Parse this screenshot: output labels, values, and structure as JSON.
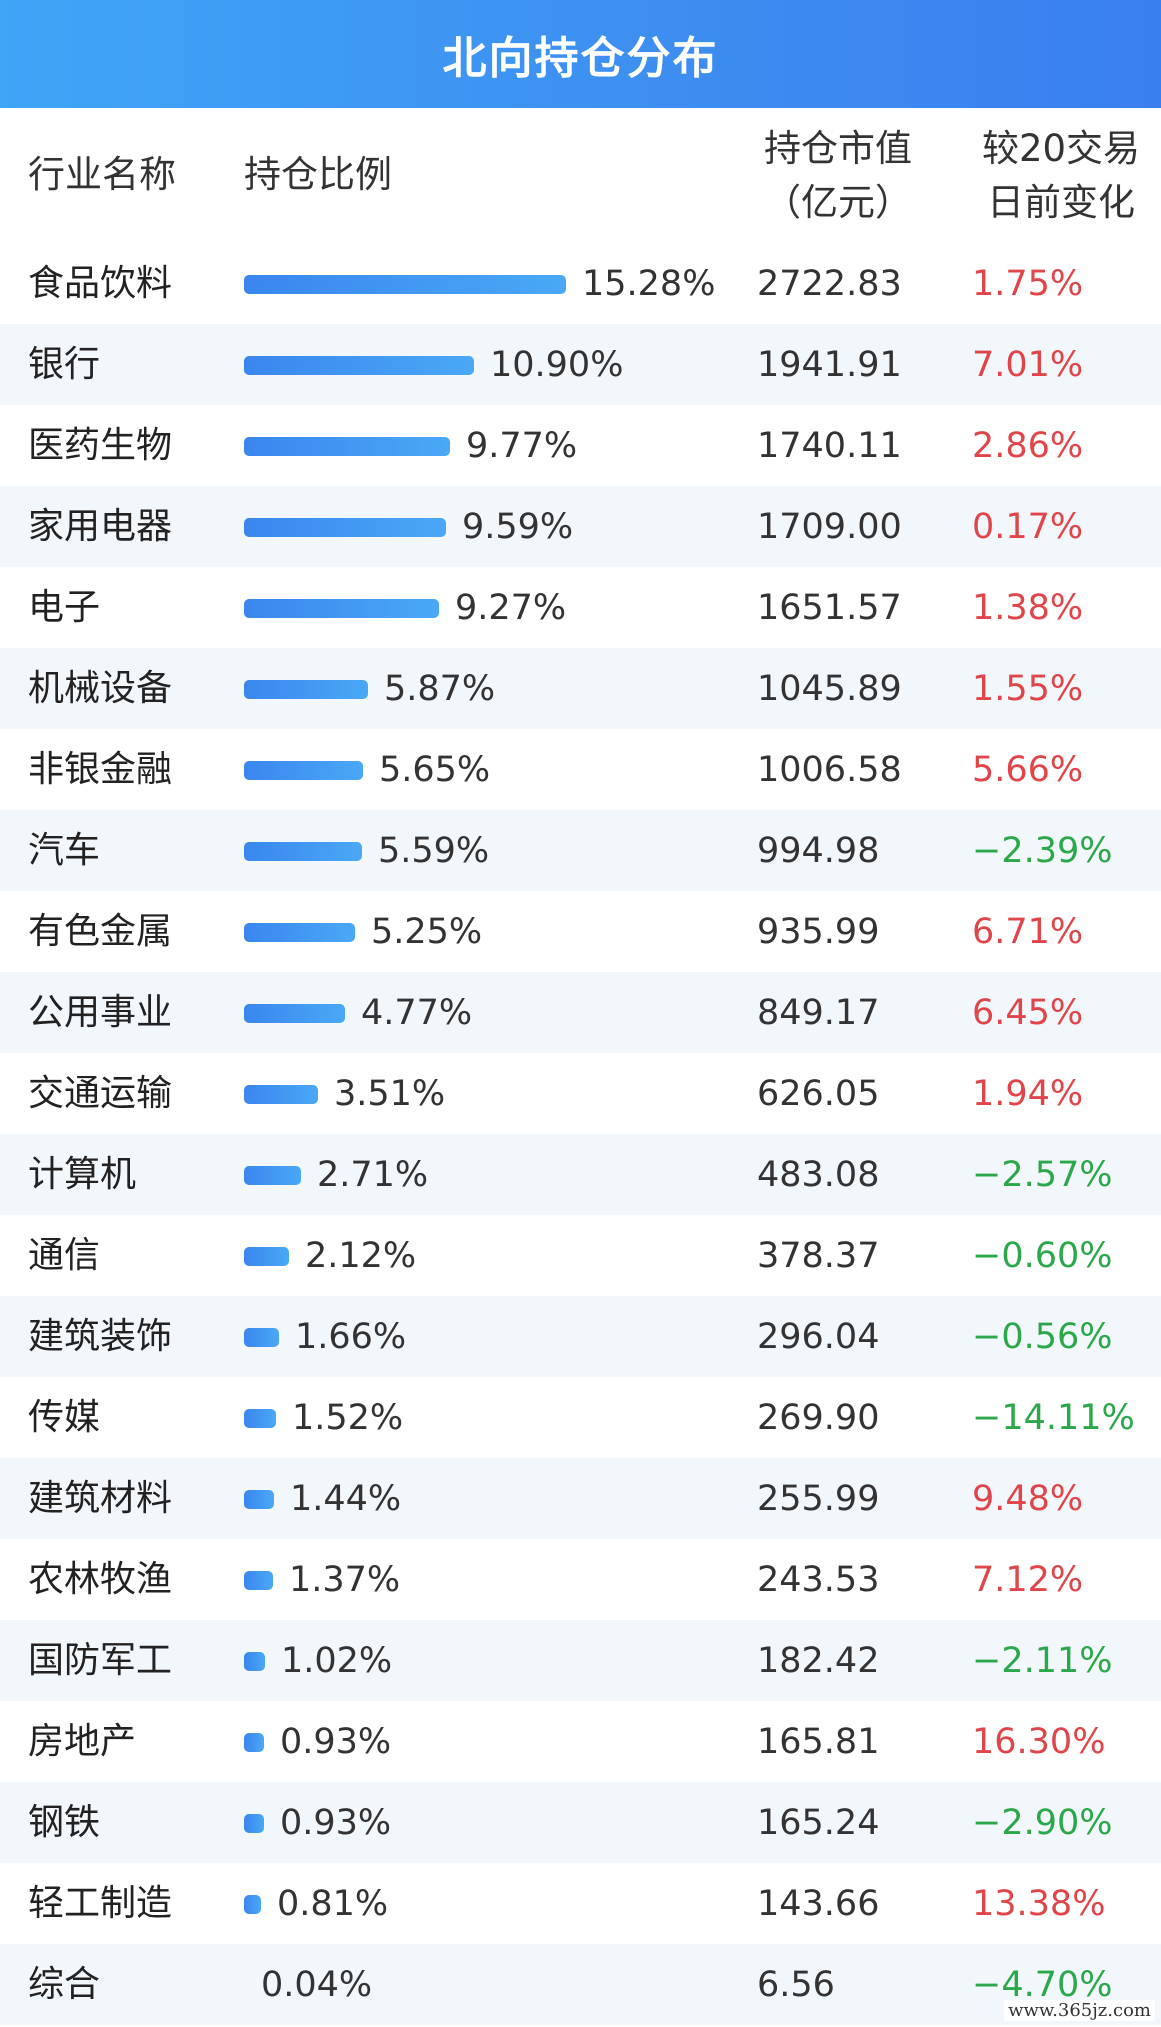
{
  "title": "北向持仓分布",
  "columns": {
    "industry": "行业名称",
    "ratio": "持仓比例",
    "value_line1": "持仓市值",
    "value_line2": "（亿元）",
    "change_line1": "较20交易",
    "change_line2": "日前变化"
  },
  "colors": {
    "title_bg": "#3d8ff0",
    "bar": "#3a86ee",
    "positive": "#e0454a",
    "negative": "#2aa84a",
    "row_alt": "#f2f7fc"
  },
  "watermark": "www.365jz.com",
  "chart_data": {
    "type": "table",
    "title": "北向持仓分布",
    "rows": [
      {
        "industry": "食品饮料",
        "ratio": 15.28,
        "ratio_label": "15.28%",
        "value": "2722.83",
        "change": "1.75%",
        "direction": "up"
      },
      {
        "industry": "银行",
        "ratio": 10.9,
        "ratio_label": "10.90%",
        "value": "1941.91",
        "change": "7.01%",
        "direction": "up"
      },
      {
        "industry": "医药生物",
        "ratio": 9.77,
        "ratio_label": "9.77%",
        "value": "1740.11",
        "change": "2.86%",
        "direction": "up"
      },
      {
        "industry": "家用电器",
        "ratio": 9.59,
        "ratio_label": "9.59%",
        "value": "1709.00",
        "change": "0.17%",
        "direction": "up"
      },
      {
        "industry": "电子",
        "ratio": 9.27,
        "ratio_label": "9.27%",
        "value": "1651.57",
        "change": "1.38%",
        "direction": "up"
      },
      {
        "industry": "机械设备",
        "ratio": 5.87,
        "ratio_label": "5.87%",
        "value": "1045.89",
        "change": "1.55%",
        "direction": "up"
      },
      {
        "industry": "非银金融",
        "ratio": 5.65,
        "ratio_label": "5.65%",
        "value": "1006.58",
        "change": "5.66%",
        "direction": "up"
      },
      {
        "industry": "汽车",
        "ratio": 5.59,
        "ratio_label": "5.59%",
        "value": "994.98",
        "change": "−2.39%",
        "direction": "down"
      },
      {
        "industry": "有色金属",
        "ratio": 5.25,
        "ratio_label": "5.25%",
        "value": "935.99",
        "change": "6.71%",
        "direction": "up"
      },
      {
        "industry": "公用事业",
        "ratio": 4.77,
        "ratio_label": "4.77%",
        "value": "849.17",
        "change": "6.45%",
        "direction": "up"
      },
      {
        "industry": "交通运输",
        "ratio": 3.51,
        "ratio_label": "3.51%",
        "value": "626.05",
        "change": "1.94%",
        "direction": "up"
      },
      {
        "industry": "计算机",
        "ratio": 2.71,
        "ratio_label": "2.71%",
        "value": "483.08",
        "change": "−2.57%",
        "direction": "down"
      },
      {
        "industry": "通信",
        "ratio": 2.12,
        "ratio_label": "2.12%",
        "value": "378.37",
        "change": "−0.60%",
        "direction": "down"
      },
      {
        "industry": "建筑装饰",
        "ratio": 1.66,
        "ratio_label": "1.66%",
        "value": "296.04",
        "change": "−0.56%",
        "direction": "down"
      },
      {
        "industry": "传媒",
        "ratio": 1.52,
        "ratio_label": "1.52%",
        "value": "269.90",
        "change": "−14.11%",
        "direction": "down"
      },
      {
        "industry": "建筑材料",
        "ratio": 1.44,
        "ratio_label": "1.44%",
        "value": "255.99",
        "change": "9.48%",
        "direction": "up"
      },
      {
        "industry": "农林牧渔",
        "ratio": 1.37,
        "ratio_label": "1.37%",
        "value": "243.53",
        "change": "7.12%",
        "direction": "up"
      },
      {
        "industry": "国防军工",
        "ratio": 1.02,
        "ratio_label": "1.02%",
        "value": "182.42",
        "change": "−2.11%",
        "direction": "down"
      },
      {
        "industry": "房地产",
        "ratio": 0.93,
        "ratio_label": "0.93%",
        "value": "165.81",
        "change": "16.30%",
        "direction": "up"
      },
      {
        "industry": "钢铁",
        "ratio": 0.93,
        "ratio_label": "0.93%",
        "value": "165.24",
        "change": "−2.90%",
        "direction": "down"
      },
      {
        "industry": "轻工制造",
        "ratio": 0.81,
        "ratio_label": "0.81%",
        "value": "143.66",
        "change": "13.38%",
        "direction": "up"
      },
      {
        "industry": "综合",
        "ratio": 0.04,
        "ratio_label": "0.04%",
        "value": "6.56",
        "change": "−4.70%",
        "direction": "down"
      }
    ]
  }
}
